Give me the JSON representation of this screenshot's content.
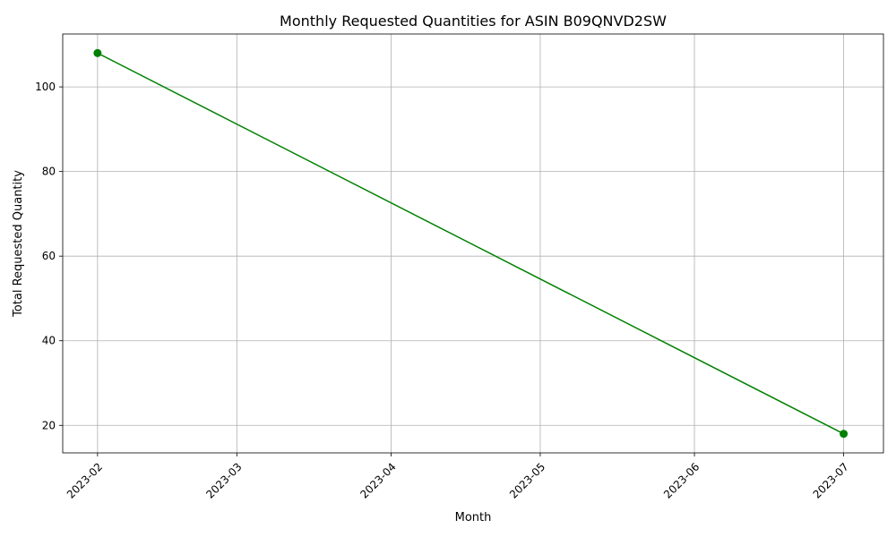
{
  "chart_data": {
    "type": "line",
    "title": "Monthly Requested Quantities for ASIN B09QNVD2SW",
    "xlabel": "Month",
    "ylabel": "Total Requested Quantity",
    "x_ticks": [
      "2023-02",
      "2023-03",
      "2023-04",
      "2023-05",
      "2023-06",
      "2023-07"
    ],
    "y_ticks": [
      20,
      40,
      60,
      80,
      100
    ],
    "xlim": [
      "2023-01-25",
      "2023-07-09"
    ],
    "ylim": [
      13.5,
      112.5
    ],
    "grid": true,
    "series": [
      {
        "color": "#008000",
        "marker": "circle",
        "points": [
          {
            "x": "2023-02-01",
            "y": 108
          },
          {
            "x": "2023-07-01",
            "y": 18
          }
        ]
      }
    ]
  }
}
